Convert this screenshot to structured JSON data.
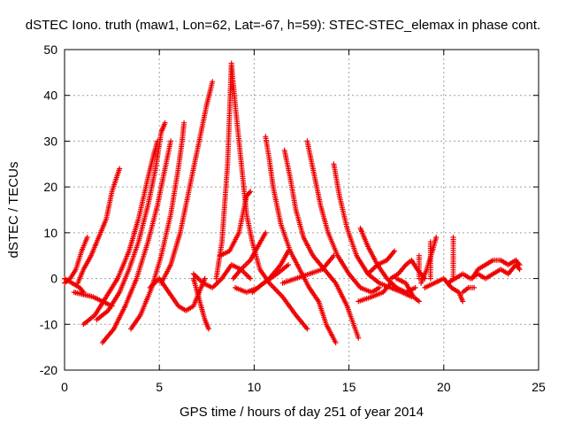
{
  "chart_data": {
    "type": "scatter",
    "title": "dSTEC Iono. truth (maw1, Lon=62, Lat=-67, h=59): STEC-STEC_elemax in phase cont.",
    "xlabel": "GPS time / hours of day 251 of year 2014",
    "ylabel": "dSTEC  / TECUs",
    "xlim": [
      0,
      25
    ],
    "ylim": [
      -20,
      50
    ],
    "xticks": [
      0,
      5,
      10,
      15,
      20,
      25
    ],
    "yticks": [
      -20,
      -10,
      0,
      10,
      20,
      30,
      40,
      50
    ],
    "xtick_labels": [
      "0",
      "5",
      "10",
      "15",
      "20",
      "25"
    ],
    "ytick_labels": [
      "-20",
      "-10",
      "0",
      "10",
      "20",
      "30",
      "40",
      "50"
    ],
    "grid": true,
    "marker": "+",
    "color": "#ee0000",
    "series": [
      {
        "points": [
          [
            0.0,
            -1
          ],
          [
            0.3,
            0
          ],
          [
            0.6,
            2
          ],
          [
            0.9,
            6
          ],
          [
            1.2,
            9
          ]
        ]
      },
      {
        "points": [
          [
            0.0,
            0
          ],
          [
            0.4,
            -1
          ],
          [
            0.8,
            -2
          ],
          [
            1.0,
            -3
          ]
        ]
      },
      {
        "points": [
          [
            0.7,
            -1
          ],
          [
            1.0,
            2
          ],
          [
            1.4,
            5
          ],
          [
            1.8,
            9
          ],
          [
            2.2,
            13
          ],
          [
            2.5,
            19
          ],
          [
            2.9,
            24
          ]
        ]
      },
      {
        "points": [
          [
            0.5,
            -3
          ],
          [
            1.0,
            -3.5
          ],
          [
            1.5,
            -4
          ],
          [
            2.0,
            -5
          ],
          [
            2.5,
            -6
          ]
        ]
      },
      {
        "points": [
          [
            1.0,
            -10
          ],
          [
            1.6,
            -8
          ],
          [
            2.2,
            -4
          ],
          [
            2.8,
            0
          ],
          [
            3.4,
            6
          ],
          [
            3.9,
            13
          ],
          [
            4.4,
            22
          ],
          [
            4.7,
            27
          ],
          [
            4.9,
            30
          ]
        ]
      },
      {
        "points": [
          [
            1.7,
            -9
          ],
          [
            2.3,
            -7
          ],
          [
            2.9,
            -3
          ],
          [
            3.4,
            2
          ],
          [
            3.9,
            8
          ],
          [
            4.4,
            16
          ],
          [
            4.8,
            24
          ],
          [
            5.1,
            32
          ],
          [
            5.3,
            34
          ]
        ]
      },
      {
        "points": [
          [
            2.0,
            -14
          ],
          [
            2.6,
            -11
          ],
          [
            3.2,
            -6
          ],
          [
            3.8,
            0
          ],
          [
            4.4,
            8
          ],
          [
            4.9,
            16
          ],
          [
            5.3,
            24
          ],
          [
            5.6,
            30
          ]
        ]
      },
      {
        "points": [
          [
            3.5,
            -11
          ],
          [
            4.0,
            -8
          ],
          [
            4.6,
            -2
          ],
          [
            5.1,
            5
          ],
          [
            5.6,
            14
          ],
          [
            6.0,
            24
          ],
          [
            6.2,
            30
          ],
          [
            6.3,
            34
          ]
        ]
      },
      {
        "points": [
          [
            4.5,
            -2
          ],
          [
            5.0,
            0
          ],
          [
            5.5,
            -3
          ],
          [
            6.0,
            -6
          ],
          [
            6.4,
            -7
          ],
          [
            6.8,
            -6
          ],
          [
            7.2,
            -2
          ],
          [
            7.4,
            0
          ]
        ]
      },
      {
        "points": [
          [
            5.1,
            -1
          ],
          [
            5.6,
            3
          ],
          [
            6.1,
            10
          ],
          [
            6.6,
            20
          ],
          [
            7.1,
            30
          ],
          [
            7.5,
            38
          ],
          [
            7.8,
            43
          ]
        ]
      },
      {
        "points": [
          [
            6.8,
            0
          ],
          [
            7.0,
            -3
          ],
          [
            7.2,
            -6
          ],
          [
            7.4,
            -9
          ],
          [
            7.6,
            -11
          ]
        ]
      },
      {
        "points": [
          [
            6.8,
            1
          ],
          [
            7.3,
            -1
          ],
          [
            7.8,
            -2
          ],
          [
            8.3,
            0
          ],
          [
            8.8,
            3
          ],
          [
            9.3,
            2
          ],
          [
            9.8,
            0
          ]
        ]
      },
      {
        "points": [
          [
            8.0,
            0
          ],
          [
            8.3,
            8
          ],
          [
            8.6,
            25
          ],
          [
            8.8,
            47
          ],
          [
            9.0,
            38
          ],
          [
            9.3,
            26
          ],
          [
            9.6,
            14
          ],
          [
            9.9,
            8
          ],
          [
            10.3,
            2
          ],
          [
            10.8,
            -1
          ],
          [
            11.5,
            -4
          ],
          [
            12.2,
            -8
          ],
          [
            12.8,
            -11
          ]
        ]
      },
      {
        "points": [
          [
            8.2,
            5
          ],
          [
            8.7,
            6
          ],
          [
            9.2,
            10
          ],
          [
            9.6,
            18
          ],
          [
            9.8,
            19
          ]
        ]
      },
      {
        "points": [
          [
            8.9,
            0
          ],
          [
            9.3,
            2
          ],
          [
            9.8,
            4
          ],
          [
            10.2,
            7
          ],
          [
            10.6,
            10
          ]
        ]
      },
      {
        "points": [
          [
            10.6,
            31
          ],
          [
            10.8,
            26
          ],
          [
            11.0,
            20
          ],
          [
            11.4,
            12
          ],
          [
            11.9,
            6
          ],
          [
            12.4,
            2
          ],
          [
            12.9,
            -2
          ],
          [
            13.4,
            -5
          ],
          [
            13.8,
            -10
          ],
          [
            14.3,
            -14
          ]
        ]
      },
      {
        "points": [
          [
            9.0,
            -2
          ],
          [
            9.6,
            -3
          ],
          [
            10.2,
            -2
          ],
          [
            10.8,
            0
          ],
          [
            11.4,
            3
          ],
          [
            11.8,
            6
          ]
        ]
      },
      {
        "points": [
          [
            11.6,
            28
          ],
          [
            11.9,
            22
          ],
          [
            12.2,
            15
          ],
          [
            12.6,
            9
          ],
          [
            13.1,
            5
          ],
          [
            13.7,
            2
          ],
          [
            14.3,
            -1
          ],
          [
            14.9,
            -6
          ],
          [
            15.5,
            -13
          ]
        ]
      },
      {
        "points": [
          [
            9.9,
            -3
          ],
          [
            10.5,
            -1
          ],
          [
            11.2,
            1
          ],
          [
            11.8,
            3
          ]
        ]
      },
      {
        "points": [
          [
            12.8,
            30
          ],
          [
            13.1,
            24
          ],
          [
            13.5,
            16
          ],
          [
            13.9,
            10
          ],
          [
            14.4,
            5
          ],
          [
            15.0,
            1
          ],
          [
            15.6,
            -2
          ],
          [
            16.2,
            -3
          ],
          [
            16.6,
            -2
          ]
        ]
      },
      {
        "points": [
          [
            11.5,
            -1
          ],
          [
            12.2,
            0
          ],
          [
            12.9,
            1
          ],
          [
            13.6,
            2
          ],
          [
            14.2,
            5
          ]
        ]
      },
      {
        "points": [
          [
            14.2,
            25
          ],
          [
            14.5,
            18
          ],
          [
            14.9,
            11
          ],
          [
            15.4,
            5
          ],
          [
            16.0,
            1
          ],
          [
            16.6,
            -1
          ],
          [
            17.2,
            -2
          ],
          [
            17.8,
            -3
          ],
          [
            18.3,
            -4
          ]
        ]
      },
      {
        "points": [
          [
            15.5,
            -5
          ],
          [
            16.2,
            -4
          ],
          [
            16.8,
            -3
          ],
          [
            17.2,
            -1
          ]
        ]
      },
      {
        "points": [
          [
            15.6,
            11
          ],
          [
            16.0,
            7
          ],
          [
            16.5,
            3
          ],
          [
            17.0,
            0
          ],
          [
            17.5,
            -2
          ],
          [
            18.0,
            -3
          ],
          [
            18.5,
            -2
          ]
        ]
      },
      {
        "points": [
          [
            16.0,
            1
          ],
          [
            16.5,
            3
          ],
          [
            17.0,
            4
          ],
          [
            17.4,
            6
          ]
        ]
      },
      {
        "points": [
          [
            17.2,
            0
          ],
          [
            17.6,
            1
          ],
          [
            18.0,
            3
          ],
          [
            18.3,
            4
          ],
          [
            18.6,
            2
          ],
          [
            19.0,
            0
          ]
        ]
      },
      {
        "points": [
          [
            17.5,
            0
          ],
          [
            18.0,
            -1
          ],
          [
            18.4,
            -4
          ],
          [
            18.7,
            -5
          ]
        ]
      },
      {
        "points": [
          [
            18.8,
            -1
          ],
          [
            19.1,
            2
          ],
          [
            19.4,
            6
          ],
          [
            19.6,
            9
          ]
        ]
      },
      {
        "points": [
          [
            19.0,
            -2
          ],
          [
            19.5,
            -1
          ],
          [
            20.0,
            0
          ],
          [
            20.4,
            -2
          ],
          [
            20.8,
            -3
          ],
          [
            21.0,
            -5
          ]
        ]
      },
      {
        "points": [
          [
            20.2,
            -1
          ],
          [
            20.6,
            0
          ],
          [
            21.0,
            1
          ],
          [
            21.4,
            0
          ],
          [
            21.8,
            1
          ],
          [
            22.2,
            0
          ],
          [
            22.6,
            1
          ],
          [
            23.0,
            2
          ],
          [
            23.4,
            1
          ],
          [
            23.8,
            3
          ],
          [
            24.0,
            2
          ]
        ]
      },
      {
        "points": [
          [
            21.5,
            0
          ],
          [
            21.8,
            2
          ],
          [
            22.2,
            3
          ],
          [
            22.6,
            4
          ],
          [
            23.0,
            4
          ],
          [
            23.4,
            3
          ],
          [
            23.8,
            4
          ],
          [
            24.0,
            3
          ]
        ]
      },
      {
        "points": [
          [
            21.0,
            -3
          ],
          [
            21.3,
            -2
          ],
          [
            21.6,
            -2
          ]
        ]
      }
    ],
    "spikes": [
      {
        "x": 19.3,
        "y0": 0,
        "y1": 8
      },
      {
        "x": 20.5,
        "y0": 0,
        "y1": 9
      },
      {
        "x": 18.7,
        "y0": 0,
        "y1": 5
      }
    ]
  }
}
